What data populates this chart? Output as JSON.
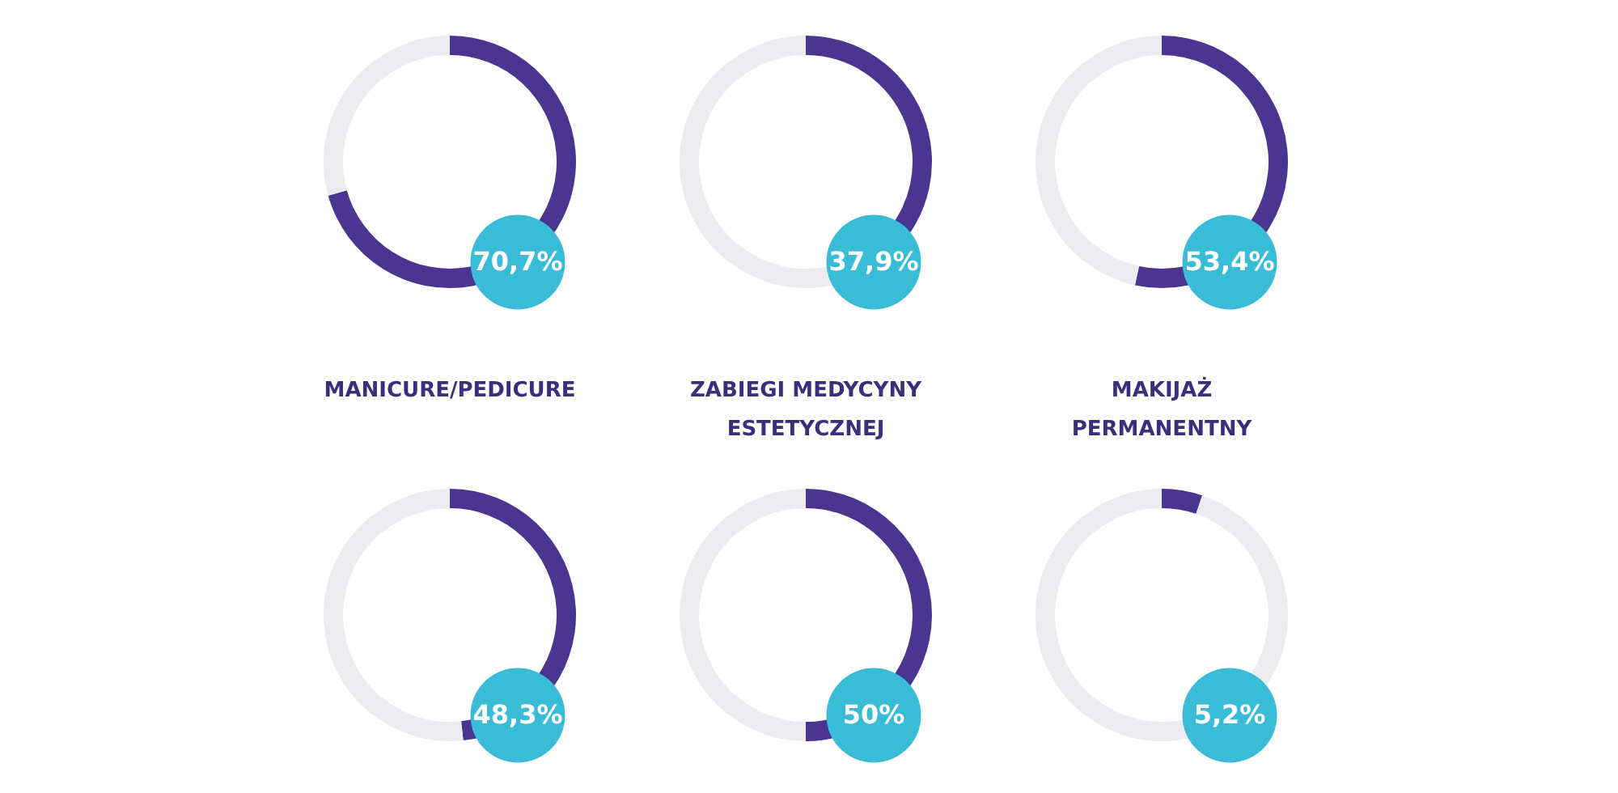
{
  "chart_data": [
    {
      "type": "donut",
      "title": "MANICURE/PEDICURE",
      "categories": [
        null,
        null
      ],
      "values": [
        70.7,
        29.3
      ],
      "colors": [
        "#4a3590",
        "#ececf0"
      ],
      "annotations": [
        "70,7%"
      ]
    },
    {
      "type": "donut",
      "title": "ZABIEGI MEDYCYNY ESTETYCZNEJ",
      "categories": [
        null,
        null
      ],
      "values": [
        37.9,
        62.1
      ],
      "colors": [
        "#4a3590",
        "#ececf0"
      ],
      "annotations": [
        "37,9%"
      ]
    },
    {
      "type": "donut",
      "title": "MAKIJAŻ PERMANENTNY",
      "categories": [
        null,
        null
      ],
      "values": [
        53.4,
        46.6
      ],
      "colors": [
        "#4a3590",
        "#ececf0"
      ],
      "annotations": [
        "53,4%"
      ]
    },
    {
      "type": "donut",
      "categories": [
        null,
        null
      ],
      "values": [
        48.3,
        51.7
      ],
      "colors": [
        "#4a3590",
        "#ececf0"
      ],
      "annotations": [
        "48,3%"
      ]
    },
    {
      "type": "donut",
      "categories": [
        null,
        null
      ],
      "values": [
        50,
        50
      ],
      "colors": [
        "#4a3590",
        "#ececf0"
      ],
      "annotations": [
        "50%"
      ]
    },
    {
      "type": "donut",
      "categories": [
        null,
        null
      ],
      "values": [
        5.2,
        94.8
      ],
      "colors": [
        "#4a3590",
        "#ececf0"
      ],
      "annotations": [
        "5,2%"
      ]
    }
  ]
}
